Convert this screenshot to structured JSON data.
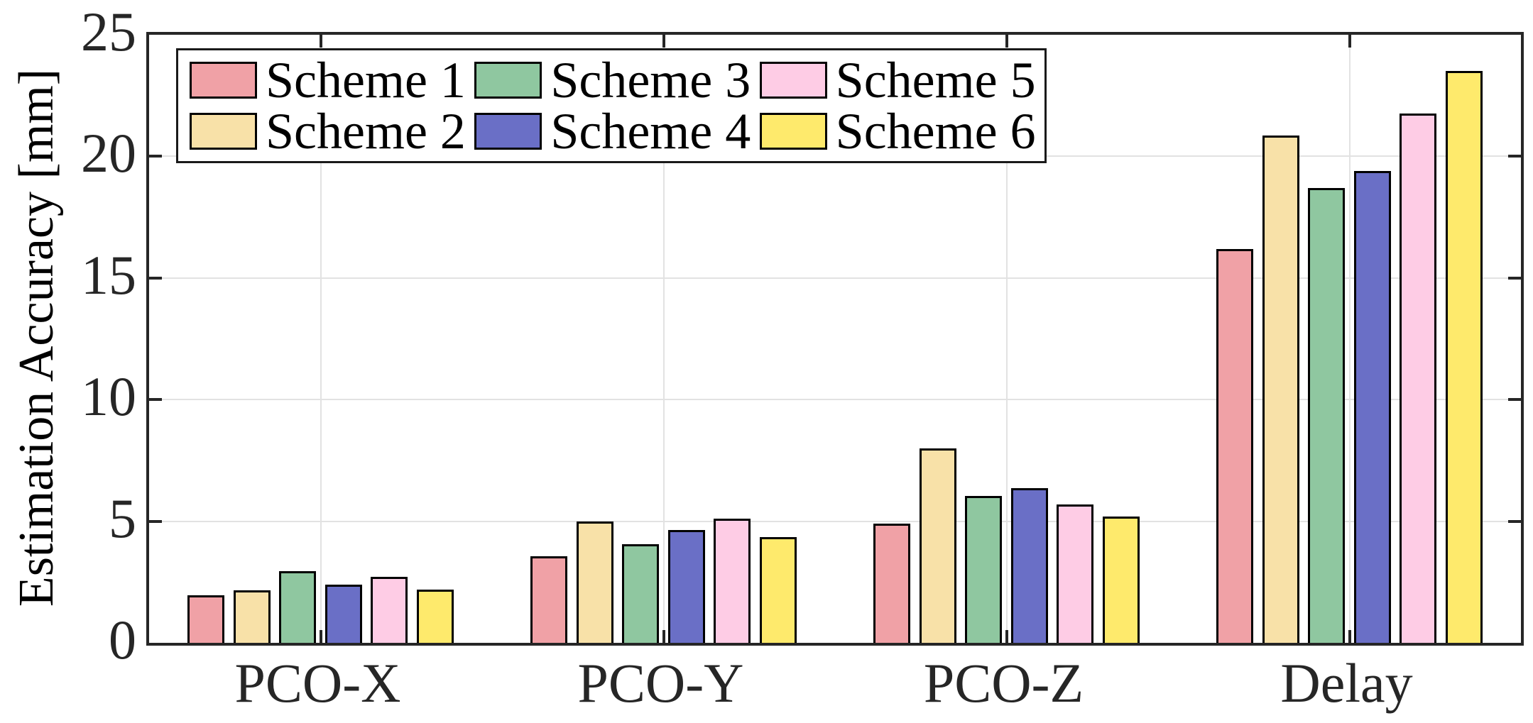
{
  "figure": {
    "background": "#ffffff",
    "axis_color": "#262626",
    "grid_color": "#e2e2e2",
    "bar_edge_color": "#000000"
  },
  "chart_data": {
    "type": "bar",
    "title": "",
    "xlabel": "",
    "ylabel": "Estimation Accuracy [mm]",
    "categories": [
      "PCO-X",
      "PCO-Y",
      "PCO-Z",
      "Delay"
    ],
    "series": [
      {
        "name": "Scheme 1",
        "color": "#F0A1A6",
        "values": [
          1.95,
          3.55,
          4.9,
          16.2
        ]
      },
      {
        "name": "Scheme 2",
        "color": "#F8E1A8",
        "values": [
          2.15,
          5.0,
          8.0,
          20.85
        ]
      },
      {
        "name": "Scheme 3",
        "color": "#8FC7A0",
        "values": [
          2.95,
          4.05,
          6.05,
          18.7
        ]
      },
      {
        "name": "Scheme 4",
        "color": "#6A6FC6",
        "values": [
          2.4,
          4.65,
          6.35,
          19.4
        ]
      },
      {
        "name": "Scheme 5",
        "color": "#FECCE5",
        "values": [
          2.7,
          5.1,
          5.7,
          21.75
        ]
      },
      {
        "name": "Scheme 6",
        "color": "#FEEA6C",
        "values": [
          2.2,
          4.35,
          5.2,
          23.5
        ]
      }
    ],
    "ylim": [
      0,
      25
    ],
    "yticks": [
      0,
      5,
      10,
      15,
      20,
      25
    ],
    "grid": true,
    "legend_position": "top-left-inside",
    "legend_columns": 3,
    "legend_rows": 2
  }
}
